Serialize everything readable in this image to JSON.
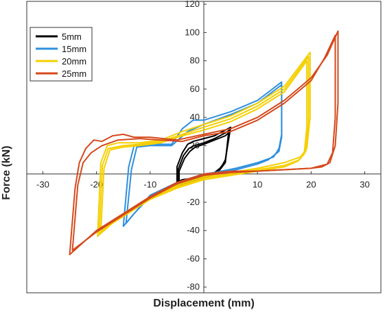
{
  "chart_data": {
    "type": "line",
    "title": "",
    "xlabel": "Displacement (mm)",
    "ylabel": "Force (kN)",
    "xlim": [
      -33,
      33
    ],
    "ylim": [
      -84,
      122
    ],
    "xticks": [
      -30,
      -20,
      -10,
      10,
      20,
      30
    ],
    "yticks": [
      -80,
      -60,
      -40,
      -20,
      20,
      40,
      60,
      80,
      100,
      120
    ],
    "grid": false,
    "legend_position": "top-left",
    "series": [
      {
        "name": "5mm",
        "color": "#000000",
        "cycles": [
          {
            "x": [
              -5,
              -5,
              -4,
              -3,
              -2,
              0,
              2,
              4,
              5,
              4,
              3,
              2,
              0,
              -2,
              -4,
              -5
            ],
            "y": [
              -8,
              5,
              15,
              21,
              23,
              25,
              27,
              31,
              33,
              10,
              3,
              0,
              -3,
              -5,
              -7,
              -8
            ]
          },
          {
            "x": [
              -4.8,
              -4.8,
              -3.8,
              -2.8,
              -1.8,
              0,
              2,
              4,
              4.8,
              4,
              3,
              2,
              0,
              -2,
              -4,
              -4.8
            ],
            "y": [
              -6,
              3,
              13,
              18,
              20,
              22,
              25,
              29,
              31,
              9,
              4,
              1,
              -2,
              -4,
              -5,
              -6
            ]
          },
          {
            "x": [
              -4.6,
              -4.6,
              -3.6,
              -2.6,
              -1.6,
              0,
              2,
              4,
              4.6,
              4,
              3,
              2,
              0,
              -2,
              -4,
              -4.6
            ],
            "y": [
              -5,
              2,
              11,
              16,
              19,
              21,
              24,
              27,
              29,
              8,
              3,
              1,
              -1,
              -3,
              -4,
              -5
            ]
          }
        ]
      },
      {
        "name": "15mm",
        "color": "#2e8fde",
        "cycles": [
          {
            "x": [
              -15,
              -14,
              -13,
              -12,
              -10,
              -6,
              -4,
              -2,
              0,
              5,
              10,
              14.5,
              14.5,
              14,
              13,
              10,
              6,
              2,
              0,
              -5,
              -10,
              -13,
              -15
            ],
            "y": [
              -37,
              5,
              20,
              21,
              21,
              21,
              32,
              38,
              38,
              44,
              52,
              65,
              28,
              18,
              12,
              8,
              4,
              1,
              0,
              -6,
              -15,
              -28,
              -37
            ]
          },
          {
            "x": [
              -14.5,
              -13.5,
              -12.5,
              -10,
              -6,
              -3,
              0,
              5,
              10,
              14.5,
              14.5,
              14,
              12,
              10,
              6,
              2,
              0,
              -5,
              -10,
              -13,
              -14.5
            ],
            "y": [
              -35,
              3,
              19,
              20,
              20,
              30,
              35,
              42,
              50,
              63,
              26,
              16,
              10,
              7,
              3,
              0,
              -1,
              -7,
              -16,
              -28,
              -35
            ]
          }
        ]
      },
      {
        "name": "20mm",
        "color": "#f5cf00",
        "cycles": [
          {
            "x": [
              -19.8,
              -19.2,
              -18,
              -16,
              -12,
              -8,
              -4,
              0,
              5,
              10,
              15,
              19.8,
              19.8,
              19.2,
              18,
              15,
              10,
              5,
              0,
              -5,
              -10,
              -15,
              -19.8
            ],
            "y": [
              -44,
              8,
              20,
              22,
              22,
              24,
              30,
              35,
              41,
              50,
              62,
              86,
              40,
              18,
              12,
              8,
              4,
              1,
              -2,
              -8,
              -16,
              -28,
              -44
            ]
          },
          {
            "x": [
              -19.5,
              -18.9,
              -17.8,
              -15,
              -12,
              -8,
              -4,
              0,
              5,
              10,
              15,
              19.5,
              19.5,
              19,
              17.8,
              15,
              10,
              5,
              0,
              -5,
              -10,
              -15,
              -19.5
            ],
            "y": [
              -42,
              6,
              18,
              20,
              21,
              23,
              28,
              33,
              39,
              48,
              60,
              83,
              36,
              16,
              10,
              6,
              3,
              0,
              -3,
              -9,
              -17,
              -29,
              -42
            ]
          },
          {
            "x": [
              -19.2,
              -18.6,
              -17.5,
              -15,
              -12,
              -8,
              -4,
              0,
              5,
              10,
              15,
              19.2,
              19.2,
              18.7,
              17.5,
              15,
              10,
              5,
              0,
              -5,
              -10,
              -15,
              -19.2
            ],
            "y": [
              -40,
              4,
              17,
              19,
              20,
              22,
              27,
              31,
              37,
              46,
              58,
              80,
              33,
              14,
              9,
              5,
              2,
              -1,
              -4,
              -10,
              -18,
              -30,
              -40
            ]
          }
        ]
      },
      {
        "name": "25mm",
        "color": "#d5481b",
        "cycles": [
          {
            "x": [
              -25,
              -24,
              -23.2,
              -22,
              -20.5,
              -19,
              -17,
              -15,
              -13,
              -10,
              -5,
              0,
              5,
              10,
              15,
              20,
              23,
              25,
              25,
              24.5,
              23.5,
              22,
              20,
              15,
              10,
              5,
              0,
              -5,
              -10,
              -15,
              -20,
              -25
            ],
            "y": [
              -57,
              -10,
              8,
              18,
              24,
              23,
              27,
              28,
              26,
              26,
              24,
              28,
              32,
              40,
              52,
              68,
              84,
              101,
              50,
              20,
              8,
              5,
              4,
              3,
              2,
              2,
              0,
              -6,
              -16,
              -28,
              -40,
              -57
            ]
          },
          {
            "x": [
              -24.5,
              -23.5,
              -22.5,
              -21,
              -19,
              -16,
              -12,
              -8,
              -4,
              0,
              5,
              10,
              15,
              20,
              22.5,
              24.5,
              24.5,
              24,
              23,
              20,
              15,
              10,
              5,
              0,
              -5,
              -10,
              -15,
              -20,
              -24.5
            ],
            "y": [
              -54,
              -8,
              8,
              15,
              20,
              24,
              25,
              24,
              23,
              27,
              30,
              38,
              50,
              66,
              82,
              98,
              40,
              15,
              7,
              4,
              3,
              2,
              1,
              -1,
              -7,
              -17,
              -29,
              -41,
              -54
            ]
          }
        ]
      }
    ]
  }
}
